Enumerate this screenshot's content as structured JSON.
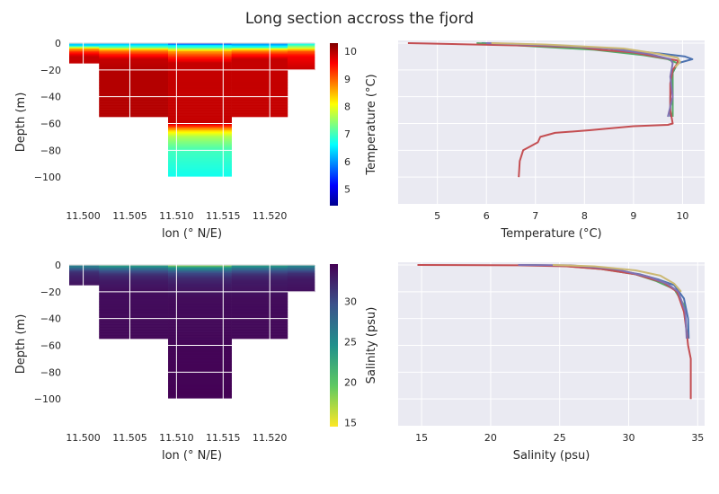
{
  "figure_title": "Long section accross the fjord",
  "chart_data": [
    {
      "id": "temp-section",
      "type": "heatmap",
      "xlabel": "lon (° N/E)",
      "ylabel": "Depth (m)",
      "xlim": [
        11.4985,
        11.5248
      ],
      "ylim": [
        -120,
        2
      ],
      "xticks": [
        "11.500",
        "11.505",
        "11.510",
        "11.515",
        "11.520"
      ],
      "xtick_values": [
        11.5,
        11.505,
        11.51,
        11.515,
        11.52
      ],
      "yticks": [
        "0",
        "−20",
        "−40",
        "−60",
        "−80",
        "−100"
      ],
      "ytick_values": [
        0,
        -20,
        -40,
        -60,
        -80,
        -100
      ],
      "colorbar": {
        "label": "Temperature (°C)",
        "ticks": [
          "5",
          "6",
          "7",
          "8",
          "9",
          "10"
        ],
        "tick_values": [
          5,
          6,
          7,
          8,
          9,
          10
        ],
        "range": [
          4.4,
          10.3
        ],
        "colormap": "jet"
      },
      "columns": [
        {
          "lon": [
            11.4985,
            11.5017
          ],
          "max_depth": 15,
          "profile": [
            [
              0,
              6.3
            ],
            [
              2,
              6.4
            ],
            [
              4,
              8.5
            ],
            [
              7,
              9.4
            ],
            [
              10,
              9.9
            ],
            [
              15,
              9.9
            ]
          ]
        },
        {
          "lon": [
            11.5017,
            11.5091
          ],
          "max_depth": 55,
          "profile": [
            [
              0,
              6.0
            ],
            [
              3,
              7.0
            ],
            [
              5,
              8.6
            ],
            [
              8,
              9.3
            ],
            [
              12,
              9.9
            ],
            [
              20,
              10.0
            ],
            [
              55,
              10.0
            ]
          ]
        },
        {
          "lon": [
            11.5091,
            11.5159
          ],
          "max_depth": 100,
          "profile": [
            [
              0,
              4.5
            ],
            [
              1,
              6.3
            ],
            [
              3,
              6.8
            ],
            [
              6,
              8.6
            ],
            [
              10,
              9.3
            ],
            [
              15,
              9.9
            ],
            [
              60,
              9.9
            ],
            [
              63,
              9.0
            ],
            [
              66,
              8.2
            ],
            [
              70,
              7.6
            ],
            [
              80,
              7.0
            ],
            [
              100,
              6.7
            ]
          ]
        },
        {
          "lon": [
            11.5159,
            11.5219
          ],
          "max_depth": 55,
          "profile": [
            [
              0,
              5.8
            ],
            [
              3,
              6.7
            ],
            [
              5,
              8.5
            ],
            [
              8,
              9.3
            ],
            [
              12,
              9.9
            ],
            [
              55,
              9.9
            ]
          ]
        },
        {
          "lon": [
            11.5219,
            11.5248
          ],
          "max_depth": 20,
          "profile": [
            [
              0,
              6.5
            ],
            [
              3,
              7.5
            ],
            [
              6,
              9.0
            ],
            [
              10,
              9.6
            ],
            [
              20,
              9.9
            ]
          ]
        }
      ]
    },
    {
      "id": "temp-profiles",
      "type": "line",
      "xlabel": "Temperature (°C)",
      "ylabel": "",
      "xlim": [
        4.2,
        10.45
      ],
      "ylim": [
        -120,
        2
      ],
      "xticks": [
        "5",
        "6",
        "7",
        "8",
        "9",
        "10"
      ],
      "xtick_values": [
        5,
        6,
        7,
        8,
        9,
        10
      ],
      "series": [
        {
          "color": "#4c72b0",
          "points": [
            [
              5.9,
              0
            ],
            [
              6.5,
              -0.5
            ],
            [
              8.5,
              -4
            ],
            [
              9.6,
              -8
            ],
            [
              10.05,
              -10
            ],
            [
              10.2,
              -12
            ],
            [
              9.9,
              -15
            ],
            [
              9.8,
              -22
            ],
            [
              9.75,
              -40
            ],
            [
              9.75,
              -55
            ]
          ]
        },
        {
          "color": "#55a868",
          "points": [
            [
              5.8,
              0
            ],
            [
              6.3,
              -1
            ],
            [
              8.2,
              -5
            ],
            [
              9.2,
              -9
            ],
            [
              9.7,
              -12
            ],
            [
              9.9,
              -15
            ],
            [
              9.8,
              -22
            ],
            [
              9.8,
              -40
            ],
            [
              9.8,
              -55
            ]
          ]
        },
        {
          "color": "#c44e52",
          "points": [
            [
              4.4,
              0
            ],
            [
              7.0,
              -2
            ],
            [
              7.9,
              -3
            ],
            [
              8.1,
              -4
            ],
            [
              8.3,
              -5
            ],
            [
              9.0,
              -7
            ],
            [
              9.6,
              -11
            ],
            [
              9.9,
              -13
            ],
            [
              9.9,
              -15
            ],
            [
              9.8,
              -20
            ],
            [
              9.75,
              -30
            ],
            [
              9.75,
              -50
            ],
            [
              9.8,
              -60
            ],
            [
              9.7,
              -61
            ],
            [
              9.0,
              -62
            ],
            [
              8.1,
              -65
            ],
            [
              7.4,
              -67
            ],
            [
              7.1,
              -70
            ],
            [
              7.05,
              -74
            ],
            [
              6.9,
              -77
            ],
            [
              6.75,
              -80
            ],
            [
              6.68,
              -88
            ],
            [
              6.66,
              -100
            ]
          ]
        },
        {
          "color": "#8172b2",
          "points": [
            [
              6.0,
              0
            ],
            [
              7.5,
              -2
            ],
            [
              8.5,
              -4
            ],
            [
              9.3,
              -8
            ],
            [
              9.75,
              -12
            ],
            [
              9.8,
              -15
            ],
            [
              9.75,
              -25
            ],
            [
              9.8,
              -40
            ],
            [
              9.7,
              -55
            ]
          ]
        },
        {
          "color": "#ccb974",
          "points": [
            [
              6.1,
              0
            ],
            [
              7.2,
              -1
            ],
            [
              8.8,
              -4
            ],
            [
              9.5,
              -8
            ],
            [
              9.9,
              -11
            ],
            [
              9.95,
              -14
            ],
            [
              9.85,
              -18
            ]
          ]
        }
      ]
    },
    {
      "id": "sal-section",
      "type": "heatmap",
      "xlabel": "lon (° N/E)",
      "ylabel": "Depth (m)",
      "xlim": [
        11.4985,
        11.5248
      ],
      "ylim": [
        -120,
        2
      ],
      "xticks": [
        "11.500",
        "11.505",
        "11.510",
        "11.515",
        "11.520"
      ],
      "xtick_values": [
        11.5,
        11.505,
        11.51,
        11.515,
        11.52
      ],
      "yticks": [
        "0",
        "−20",
        "−40",
        "−60",
        "−80",
        "−100"
      ],
      "ytick_values": [
        0,
        -20,
        -40,
        -60,
        -80,
        -100
      ],
      "colorbar": {
        "label": "Salinity (psu)",
        "ticks": [
          "15",
          "20",
          "25",
          "30"
        ],
        "tick_values": [
          15,
          20,
          25,
          30
        ],
        "range": [
          14.5,
          34.6
        ],
        "colormap": "viridis_r"
      },
      "columns": [
        {
          "lon": [
            11.4985,
            11.5017
          ],
          "max_depth": 15,
          "profile": [
            [
              0,
              25.5
            ],
            [
              2,
              27
            ],
            [
              5,
              31.5
            ],
            [
              8,
              32.5
            ],
            [
              15,
              33.5
            ]
          ]
        },
        {
          "lon": [
            11.5017,
            11.5091
          ],
          "max_depth": 55,
          "profile": [
            [
              0,
              22.0
            ],
            [
              2,
              26
            ],
            [
              5,
              30
            ],
            [
              8,
              32
            ],
            [
              12,
              33
            ],
            [
              20,
              33.8
            ],
            [
              55,
              34.2
            ]
          ]
        },
        {
          "lon": [
            11.5091,
            11.5159
          ],
          "max_depth": 100,
          "profile": [
            [
              0,
              14.7
            ],
            [
              1,
              22
            ],
            [
              3,
              25.5
            ],
            [
              6,
              30
            ],
            [
              10,
              32
            ],
            [
              15,
              33
            ],
            [
              25,
              33.9
            ],
            [
              60,
              34.3
            ],
            [
              100,
              34.5
            ]
          ]
        },
        {
          "lon": [
            11.5159,
            11.5219
          ],
          "max_depth": 55,
          "profile": [
            [
              0,
              22.5
            ],
            [
              2,
              26
            ],
            [
              5,
              30
            ],
            [
              8,
              32
            ],
            [
              12,
              33
            ],
            [
              25,
              33.9
            ],
            [
              55,
              34.2
            ]
          ]
        },
        {
          "lon": [
            11.5219,
            11.5248
          ],
          "max_depth": 20,
          "profile": [
            [
              0,
              24.5
            ],
            [
              3,
              28
            ],
            [
              6,
              31.5
            ],
            [
              10,
              33
            ],
            [
              20,
              33.7
            ]
          ]
        }
      ]
    },
    {
      "id": "sal-profiles",
      "type": "line",
      "xlabel": "Salinity (psu)",
      "ylabel": "",
      "xlim": [
        13.3,
        35.5
      ],
      "ylim": [
        -120,
        2
      ],
      "xticks": [
        "15",
        "20",
        "25",
        "30",
        "35"
      ],
      "xtick_values": [
        15,
        20,
        25,
        30,
        35
      ],
      "series": [
        {
          "color": "#4c72b0",
          "points": [
            [
              22.0,
              0
            ],
            [
              25.5,
              -0.5
            ],
            [
              28.5,
              -3
            ],
            [
              30.8,
              -7
            ],
            [
              32.2,
              -11
            ],
            [
              33.3,
              -15
            ],
            [
              34.0,
              -25
            ],
            [
              34.3,
              -40
            ],
            [
              34.35,
              -55
            ]
          ]
        },
        {
          "color": "#55a868",
          "points": [
            [
              22.5,
              0
            ],
            [
              25.0,
              -0.5
            ],
            [
              28.0,
              -3
            ],
            [
              30.5,
              -7
            ],
            [
              32.0,
              -12
            ],
            [
              33.3,
              -18
            ],
            [
              34.0,
              -30
            ],
            [
              34.2,
              -50
            ]
          ]
        },
        {
          "color": "#c44e52",
          "points": [
            [
              14.7,
              0
            ],
            [
              22.0,
              -0.3
            ],
            [
              25.5,
              -1
            ],
            [
              28.0,
              -3
            ],
            [
              30.5,
              -7
            ],
            [
              32.5,
              -13
            ],
            [
              33.5,
              -20
            ],
            [
              34.0,
              -35
            ],
            [
              34.2,
              -50
            ],
            [
              34.3,
              -60
            ],
            [
              34.5,
              -70
            ],
            [
              34.5,
              -100
            ]
          ]
        },
        {
          "color": "#8172b2",
          "points": [
            [
              22.0,
              0
            ],
            [
              25.8,
              -0.3
            ],
            [
              29.0,
              -3
            ],
            [
              31.5,
              -9
            ],
            [
              32.8,
              -14
            ],
            [
              33.6,
              -20
            ],
            [
              34.1,
              -35
            ],
            [
              34.2,
              -55
            ]
          ]
        },
        {
          "color": "#ccb974",
          "points": [
            [
              24.5,
              0
            ],
            [
              27.5,
              -1
            ],
            [
              30.5,
              -4
            ],
            [
              32.3,
              -8
            ],
            [
              33.3,
              -14
            ],
            [
              33.8,
              -20
            ]
          ]
        }
      ]
    }
  ]
}
